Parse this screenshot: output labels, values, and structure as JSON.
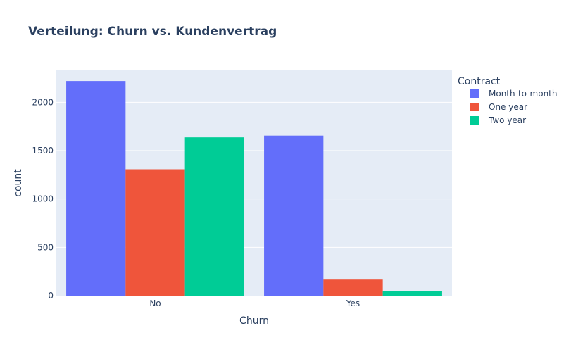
{
  "chart_data": {
    "type": "bar",
    "title": "Verteilung: Churn vs. Kundenvertrag",
    "xlabel": "Churn",
    "ylabel": "count",
    "categories": [
      "No",
      "Yes"
    ],
    "ylim": [
      0,
      2330
    ],
    "yticks": [
      0,
      500,
      1000,
      1500,
      2000
    ],
    "grid": true,
    "legend_title": "Contract",
    "legend_position": "top-right",
    "series": [
      {
        "name": "Month-to-month",
        "color": "#636efa",
        "values": [
          2220,
          1655
        ]
      },
      {
        "name": "One year",
        "color": "#ef553b",
        "values": [
          1307,
          166
        ]
      },
      {
        "name": "Two year",
        "color": "#00cc96",
        "values": [
          1637,
          48
        ]
      }
    ]
  },
  "colors": {
    "plot_background": "#e5ecf6",
    "gridline": "#ffffff",
    "text": "#2a3f5f"
  }
}
